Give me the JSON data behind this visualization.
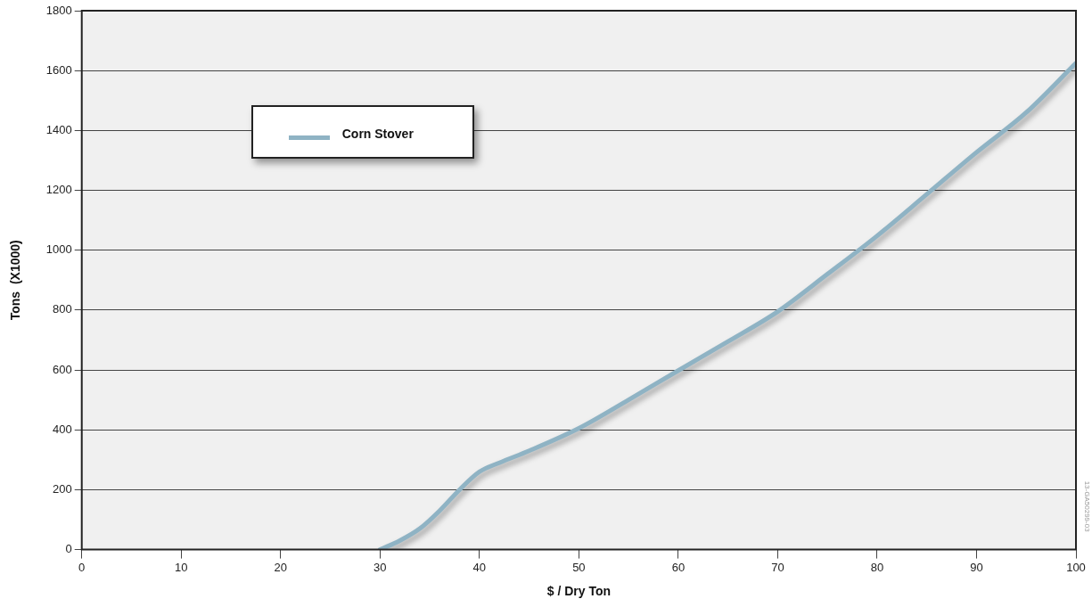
{
  "chart_data": {
    "type": "line",
    "xlabel": "$ / Dry Ton",
    "ylabel": "Tons  (X1000)",
    "xlim": [
      0,
      100
    ],
    "xticks": [
      0,
      10,
      20,
      30,
      40,
      50,
      60,
      70,
      80,
      90,
      100
    ],
    "ylim": [
      0,
      1800
    ],
    "yticks": [
      0,
      200,
      400,
      600,
      800,
      1000,
      1200,
      1400,
      1600,
      1800
    ],
    "grid": "y",
    "legend": "top left",
    "marker": "none",
    "line_style": "solid",
    "annotations": [
      "13-GA50299-03"
    ],
    "series": [
      {
        "name": "Corn Stover",
        "color": "#8fb3c4",
        "x": [
          30,
          32,
          34,
          36,
          38,
          40,
          42,
          45,
          50,
          55,
          60,
          65,
          70,
          75,
          80,
          85,
          90,
          95,
          100
        ],
        "values": [
          0,
          30,
          70,
          130,
          200,
          260,
          290,
          330,
          405,
          500,
          598,
          695,
          795,
          920,
          1048,
          1187,
          1327,
          1460,
          1625
        ]
      }
    ]
  }
}
